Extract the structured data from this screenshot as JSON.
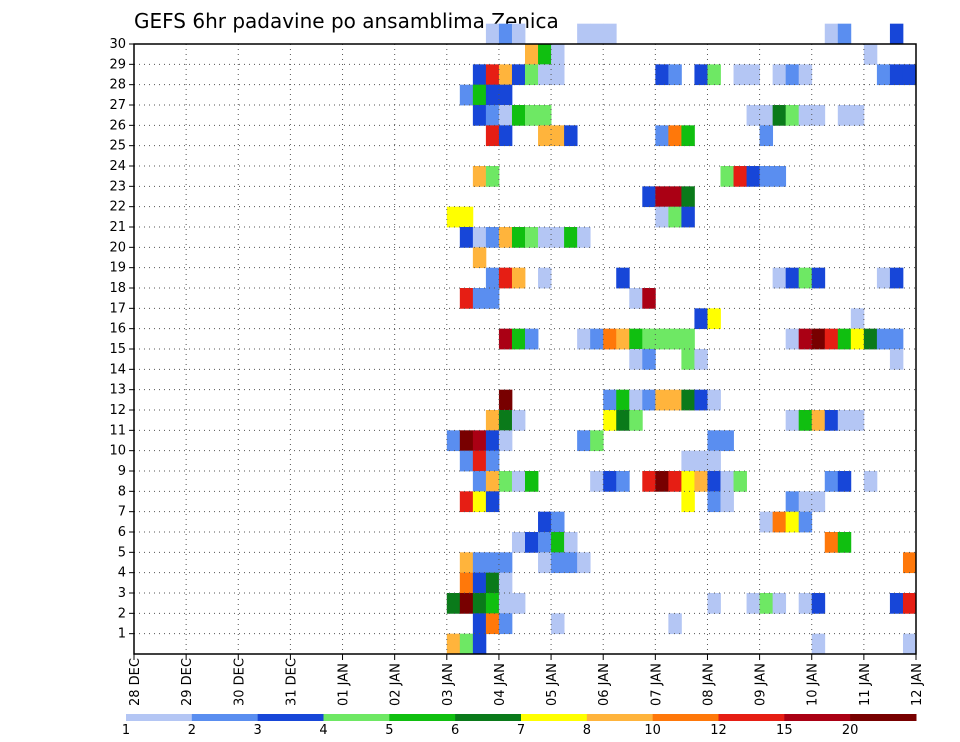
{
  "chart_data": {
    "type": "heatmap",
    "title": "GEFS 6hr padavine po ansamblima Zenica",
    "xlabel": "",
    "ylabel": "",
    "x_tick_labels": [
      "28 DEC",
      "29 DEC",
      "30 DEC",
      "31 DEC",
      "01 JAN",
      "02 JAN",
      "03 JAN",
      "04 JAN",
      "05 JAN",
      "06 JAN",
      "07 JAN",
      "08 JAN",
      "09 JAN",
      "10 JAN",
      "11 JAN",
      "12 JAN"
    ],
    "x_range": [
      0,
      60
    ],
    "y_tick_labels": [
      "1",
      "2",
      "3",
      "4",
      "5",
      "6",
      "7",
      "8",
      "9",
      "10",
      "11",
      "12",
      "13",
      "14",
      "15",
      "16",
      "17",
      "18",
      "19",
      "20",
      "21",
      "22",
      "23",
      "24",
      "25",
      "26",
      "27",
      "28",
      "29",
      "30"
    ],
    "y_range": [
      0,
      30
    ],
    "grid": true,
    "colorbar": {
      "position": "bottom",
      "colors": [
        "#b4c6f4",
        "#5a8ef0",
        "#1746d8",
        "#6ee864",
        "#10bf10",
        "#0a7a1a",
        "#ffff00",
        "#ffb43c",
        "#ff780a",
        "#e61e14",
        "#aa0014",
        "#780000"
      ],
      "labels": [
        "1",
        "2",
        "3",
        "4",
        "5",
        "6",
        "7",
        "8",
        "10",
        "12",
        "15",
        "20"
      ]
    },
    "cells": [
      [
        0,
        30,
        27,
        1
      ],
      [
        0,
        30,
        28,
        2
      ],
      [
        0,
        30,
        29,
        1
      ],
      [
        0,
        30,
        34,
        1
      ],
      [
        0,
        30,
        35,
        1
      ],
      [
        0,
        30,
        36,
        1
      ],
      [
        0,
        30,
        53,
        1
      ],
      [
        0,
        30,
        54,
        2
      ],
      [
        0,
        30,
        58,
        3
      ],
      [
        0,
        29,
        30,
        8
      ],
      [
        0,
        29,
        31,
        5
      ],
      [
        0,
        29,
        32,
        1
      ],
      [
        0,
        29,
        56,
        1
      ],
      [
        0,
        28,
        26,
        3
      ],
      [
        0,
        28,
        27,
        10
      ],
      [
        0,
        28,
        28,
        8
      ],
      [
        0,
        28,
        29,
        3
      ],
      [
        0,
        28,
        30,
        4
      ],
      [
        0,
        28,
        31,
        1
      ],
      [
        0,
        28,
        32,
        1
      ],
      [
        0,
        28,
        40,
        3
      ],
      [
        0,
        28,
        41,
        2
      ],
      [
        0,
        28,
        43,
        3
      ],
      [
        0,
        28,
        44,
        4
      ],
      [
        0,
        28,
        46,
        1
      ],
      [
        0,
        28,
        47,
        1
      ],
      [
        0,
        28,
        49,
        1
      ],
      [
        0,
        28,
        50,
        2
      ],
      [
        0,
        28,
        51,
        1
      ],
      [
        0,
        28,
        57,
        2
      ],
      [
        0,
        28,
        58,
        3
      ],
      [
        0,
        28,
        59,
        3
      ],
      [
        0,
        27,
        25,
        2
      ],
      [
        0,
        27,
        26,
        5
      ],
      [
        0,
        27,
        27,
        3
      ],
      [
        0,
        27,
        28,
        3
      ],
      [
        0,
        26,
        26,
        3
      ],
      [
        0,
        26,
        27,
        2
      ],
      [
        0,
        26,
        28,
        1
      ],
      [
        0,
        26,
        29,
        5
      ],
      [
        0,
        26,
        30,
        4
      ],
      [
        0,
        26,
        31,
        4
      ],
      [
        0,
        26,
        47,
        1
      ],
      [
        0,
        26,
        48,
        1
      ],
      [
        0,
        26,
        49,
        6
      ],
      [
        0,
        26,
        50,
        4
      ],
      [
        0,
        26,
        51,
        1
      ],
      [
        0,
        26,
        52,
        1
      ],
      [
        0,
        26,
        54,
        1
      ],
      [
        0,
        26,
        55,
        1
      ],
      [
        0,
        25,
        27,
        10
      ],
      [
        0,
        25,
        28,
        3
      ],
      [
        0,
        25,
        31,
        8
      ],
      [
        0,
        25,
        32,
        8
      ],
      [
        0,
        25,
        33,
        3
      ],
      [
        0,
        25,
        40,
        2
      ],
      [
        0,
        25,
        41,
        9
      ],
      [
        0,
        25,
        42,
        5
      ],
      [
        0,
        25,
        48,
        2
      ],
      [
        0,
        23,
        26,
        8
      ],
      [
        0,
        23,
        27,
        4
      ],
      [
        0,
        23,
        45,
        4
      ],
      [
        0,
        23,
        46,
        10
      ],
      [
        0,
        23,
        47,
        3
      ],
      [
        0,
        23,
        48,
        2
      ],
      [
        0,
        23,
        49,
        2
      ],
      [
        0,
        22,
        39,
        3
      ],
      [
        0,
        22,
        40,
        11
      ],
      [
        0,
        22,
        41,
        11
      ],
      [
        0,
        22,
        42,
        6
      ],
      [
        0,
        21,
        24,
        7
      ],
      [
        0,
        21,
        25,
        7
      ],
      [
        0,
        21,
        40,
        1
      ],
      [
        0,
        21,
        41,
        4
      ],
      [
        0,
        21,
        42,
        3
      ],
      [
        0,
        20,
        25,
        3
      ],
      [
        0,
        20,
        26,
        1
      ],
      [
        0,
        20,
        27,
        2
      ],
      [
        0,
        20,
        28,
        8
      ],
      [
        0,
        20,
        29,
        5
      ],
      [
        0,
        20,
        30,
        4
      ],
      [
        0,
        20,
        31,
        1
      ],
      [
        0,
        20,
        32,
        1
      ],
      [
        0,
        20,
        33,
        5
      ],
      [
        0,
        20,
        34,
        1
      ],
      [
        0,
        19,
        26,
        8
      ],
      [
        0,
        18,
        27,
        2
      ],
      [
        0,
        18,
        28,
        10
      ],
      [
        0,
        18,
        29,
        8
      ],
      [
        0,
        18,
        31,
        1
      ],
      [
        0,
        18,
        37,
        3
      ],
      [
        0,
        18,
        49,
        1
      ],
      [
        0,
        18,
        50,
        3
      ],
      [
        0,
        18,
        51,
        4
      ],
      [
        0,
        18,
        52,
        3
      ],
      [
        0,
        18,
        57,
        1
      ],
      [
        0,
        18,
        58,
        3
      ],
      [
        0,
        17,
        25,
        10
      ],
      [
        0,
        17,
        26,
        2
      ],
      [
        0,
        17,
        27,
        2
      ],
      [
        0,
        17,
        38,
        1
      ],
      [
        0,
        17,
        39,
        11
      ],
      [
        0,
        16,
        43,
        3
      ],
      [
        0,
        16,
        44,
        7
      ],
      [
        0,
        16,
        55,
        1
      ],
      [
        0,
        15,
        28,
        11
      ],
      [
        0,
        15,
        29,
        5
      ],
      [
        0,
        15,
        30,
        2
      ],
      [
        0,
        15,
        34,
        1
      ],
      [
        0,
        15,
        35,
        2
      ],
      [
        0,
        15,
        36,
        9
      ],
      [
        0,
        15,
        37,
        8
      ],
      [
        0,
        15,
        38,
        5
      ],
      [
        0,
        15,
        39,
        4
      ],
      [
        0,
        15,
        40,
        4
      ],
      [
        0,
        15,
        41,
        4
      ],
      [
        0,
        15,
        42,
        4
      ],
      [
        0,
        15,
        50,
        1
      ],
      [
        0,
        15,
        51,
        11
      ],
      [
        0,
        15,
        52,
        12
      ],
      [
        0,
        15,
        53,
        10
      ],
      [
        0,
        15,
        54,
        5
      ],
      [
        0,
        15,
        55,
        7
      ],
      [
        0,
        15,
        56,
        6
      ],
      [
        0,
        15,
        57,
        2
      ],
      [
        0,
        15,
        58,
        2
      ],
      [
        0,
        14,
        38,
        1
      ],
      [
        0,
        14,
        39,
        2
      ],
      [
        0,
        14,
        42,
        4
      ],
      [
        0,
        14,
        43,
        1
      ],
      [
        0,
        14,
        58,
        1
      ],
      [
        0,
        12,
        28,
        12
      ],
      [
        0,
        12,
        36,
        2
      ],
      [
        0,
        12,
        37,
        5
      ],
      [
        0,
        12,
        38,
        1
      ],
      [
        0,
        12,
        39,
        2
      ],
      [
        0,
        12,
        40,
        8
      ],
      [
        0,
        12,
        41,
        8
      ],
      [
        0,
        12,
        42,
        6
      ],
      [
        0,
        12,
        43,
        3
      ],
      [
        0,
        12,
        44,
        1
      ],
      [
        0,
        11,
        27,
        8
      ],
      [
        0,
        11,
        28,
        6
      ],
      [
        0,
        11,
        29,
        1
      ],
      [
        0,
        11,
        36,
        7
      ],
      [
        0,
        11,
        37,
        6
      ],
      [
        0,
        11,
        38,
        4
      ],
      [
        0,
        11,
        50,
        1
      ],
      [
        0,
        11,
        51,
        5
      ],
      [
        0,
        11,
        52,
        8
      ],
      [
        0,
        11,
        53,
        3
      ],
      [
        0,
        11,
        54,
        1
      ],
      [
        0,
        11,
        55,
        1
      ],
      [
        0,
        10,
        24,
        2
      ],
      [
        0,
        10,
        25,
        12
      ],
      [
        0,
        10,
        26,
        11
      ],
      [
        0,
        10,
        27,
        3
      ],
      [
        0,
        10,
        28,
        1
      ],
      [
        0,
        10,
        34,
        2
      ],
      [
        0,
        10,
        35,
        4
      ],
      [
        0,
        10,
        44,
        2
      ],
      [
        0,
        10,
        45,
        2
      ],
      [
        0,
        9,
        25,
        2
      ],
      [
        0,
        9,
        26,
        10
      ],
      [
        0,
        9,
        27,
        2
      ],
      [
        0,
        9,
        42,
        1
      ],
      [
        0,
        9,
        43,
        1
      ],
      [
        0,
        9,
        44,
        1
      ],
      [
        0,
        8,
        26,
        2
      ],
      [
        0,
        8,
        27,
        8
      ],
      [
        0,
        8,
        28,
        4
      ],
      [
        0,
        8,
        29,
        1
      ],
      [
        0,
        8,
        30,
        5
      ],
      [
        0,
        8,
        35,
        1
      ],
      [
        0,
        8,
        36,
        3
      ],
      [
        0,
        8,
        37,
        2
      ],
      [
        0,
        8,
        39,
        10
      ],
      [
        0,
        8,
        40,
        12
      ],
      [
        0,
        8,
        41,
        10
      ],
      [
        0,
        8,
        42,
        7
      ],
      [
        0,
        8,
        43,
        8
      ],
      [
        0,
        8,
        44,
        3
      ],
      [
        0,
        8,
        45,
        1
      ],
      [
        0,
        8,
        46,
        4
      ],
      [
        0,
        8,
        53,
        2
      ],
      [
        0,
        8,
        54,
        3
      ],
      [
        0,
        8,
        56,
        1
      ],
      [
        0,
        7,
        25,
        10
      ],
      [
        0,
        7,
        26,
        7
      ],
      [
        0,
        7,
        27,
        3
      ],
      [
        0,
        7,
        42,
        7
      ],
      [
        0,
        7,
        44,
        2
      ],
      [
        0,
        7,
        45,
        1
      ],
      [
        0,
        7,
        50,
        2
      ],
      [
        0,
        7,
        51,
        1
      ],
      [
        0,
        7,
        52,
        1
      ],
      [
        0,
        6,
        31,
        3
      ],
      [
        0,
        6,
        32,
        2
      ],
      [
        0,
        6,
        48,
        1
      ],
      [
        0,
        6,
        49,
        9
      ],
      [
        0,
        6,
        50,
        7
      ],
      [
        0,
        6,
        51,
        2
      ],
      [
        0,
        5,
        29,
        1
      ],
      [
        0,
        5,
        30,
        3
      ],
      [
        0,
        5,
        31,
        2
      ],
      [
        0,
        5,
        32,
        5
      ],
      [
        0,
        5,
        33,
        1
      ],
      [
        0,
        5,
        53,
        9
      ],
      [
        0,
        5,
        54,
        5
      ],
      [
        0,
        4,
        25,
        8
      ],
      [
        0,
        4,
        26,
        2
      ],
      [
        0,
        4,
        27,
        2
      ],
      [
        0,
        4,
        28,
        2
      ],
      [
        0,
        4,
        31,
        1
      ],
      [
        0,
        4,
        32,
        2
      ],
      [
        0,
        4,
        33,
        2
      ],
      [
        0,
        4,
        34,
        1
      ],
      [
        0,
        4,
        59,
        9
      ],
      [
        0,
        3,
        25,
        9
      ],
      [
        0,
        3,
        26,
        3
      ],
      [
        0,
        3,
        27,
        6
      ],
      [
        0,
        3,
        28,
        1
      ],
      [
        0,
        2,
        24,
        6
      ],
      [
        0,
        2,
        25,
        12
      ],
      [
        0,
        2,
        26,
        6
      ],
      [
        0,
        2,
        27,
        5
      ],
      [
        0,
        2,
        28,
        1
      ],
      [
        0,
        2,
        29,
        1
      ],
      [
        0,
        2,
        44,
        1
      ],
      [
        0,
        2,
        47,
        1
      ],
      [
        0,
        2,
        48,
        4
      ],
      [
        0,
        2,
        49,
        1
      ],
      [
        0,
        2,
        51,
        1
      ],
      [
        0,
        2,
        52,
        3
      ],
      [
        0,
        2,
        58,
        3
      ],
      [
        0,
        2,
        59,
        10
      ],
      [
        0,
        1,
        26,
        3
      ],
      [
        0,
        1,
        27,
        9
      ],
      [
        0,
        1,
        28,
        2
      ],
      [
        0,
        1,
        32,
        1
      ],
      [
        0,
        1,
        41,
        1
      ],
      [
        0,
        0,
        24,
        8
      ],
      [
        0,
        0,
        25,
        4
      ],
      [
        0,
        0,
        26,
        3
      ],
      [
        0,
        0,
        52,
        1
      ],
      [
        0,
        0,
        59,
        1
      ]
    ]
  }
}
